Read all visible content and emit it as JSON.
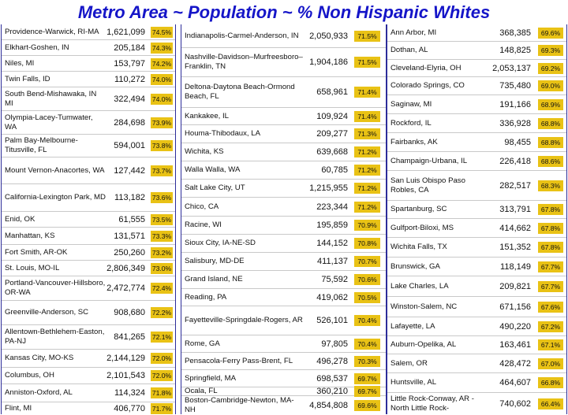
{
  "title": "Metro Area ~ Population ~ % Non Hispanic Whites",
  "highlight_color": "#e9c215",
  "title_color": "#1515c8",
  "columns": [
    [
      {
        "name": "Providence-Warwick, RI-MA",
        "pop": "1,621,099",
        "pct": "74.5%"
      },
      {
        "name": "Elkhart-Goshen, IN",
        "pop": "205,184",
        "pct": "74.3%"
      },
      {
        "name": "Niles, MI",
        "pop": "153,797",
        "pct": "74.2%"
      },
      {
        "name": "Twin Falls, ID",
        "pop": "110,272",
        "pct": "74.0%"
      },
      {
        "name": "South Bend-Mishawaka, IN MI",
        "pop": "322,494",
        "pct": "74.0%"
      },
      {
        "name": "Olympia-Lacey-Tumwater, WA",
        "pop": "284,698",
        "pct": "73.9%"
      },
      {
        "name": "Palm Bay-Melbourne-Titusville, FL",
        "pop": "594,001",
        "pct": "73.8%"
      },
      {
        "name": "Mount Vernon-Anacortes, WA",
        "pop": "127,442",
        "pct": "73.7%"
      },
      {
        "name": "California-Lexington Park, MD",
        "pop": "113,182",
        "pct": "73.6%"
      },
      {
        "name": "Enid, OK",
        "pop": "61,555",
        "pct": "73.5%"
      },
      {
        "name": "Manhattan, KS",
        "pop": "131,571",
        "pct": "73.3%"
      },
      {
        "name": "Fort Smith, AR-OK",
        "pop": "250,260",
        "pct": "73.2%"
      },
      {
        "name": "St. Louis, MO-IL",
        "pop": "2,806,349",
        "pct": "73.0%"
      },
      {
        "name": "Portland-Vancouver-Hillsboro, OR-WA",
        "pop": "2,472,774",
        "pct": "72.4%"
      },
      {
        "name": "Greenville-Anderson, SC",
        "pop": "908,680",
        "pct": "72.2%"
      },
      {
        "name": "Allentown-Bethlehem-Easton, PA-NJ",
        "pop": "841,265",
        "pct": "72.1%"
      },
      {
        "name": "Kansas City, MO-KS",
        "pop": "2,144,129",
        "pct": "72.0%"
      },
      {
        "name": "Columbus, OH",
        "pop": "2,101,543",
        "pct": "72.0%"
      },
      {
        "name": "Anniston-Oxford, AL",
        "pop": "114,324",
        "pct": "71.8%"
      },
      {
        "name": "Flint, MI",
        "pop": "406,770",
        "pct": "71.7%"
      }
    ],
    [
      {
        "name": "Indianapolis-Carmel-Anderson, IN",
        "pop": "2,050,933",
        "pct": "71.5%"
      },
      {
        "name": "Nashville-Davidson–Murfreesboro–Franklin, TN",
        "pop": "1,904,186",
        "pct": "71.5%"
      },
      {
        "name": "Deltona-Daytona Beach-Ormond Beach, FL",
        "pop": "658,961",
        "pct": "71.4%"
      },
      {
        "name": "Kankakee, IL",
        "pop": "109,924",
        "pct": "71.4%"
      },
      {
        "name": "Houma-Thibodaux, LA",
        "pop": "209,277",
        "pct": "71.3%"
      },
      {
        "name": "Wichita, KS",
        "pop": "639,668",
        "pct": "71.2%"
      },
      {
        "name": "Walla Walla, WA",
        "pop": "60,785",
        "pct": "71.2%"
      },
      {
        "name": "Salt Lake City, UT",
        "pop": "1,215,955",
        "pct": "71.2%"
      },
      {
        "name": "Chico, CA",
        "pop": "223,344",
        "pct": "71.2%"
      },
      {
        "name": "Racine, WI",
        "pop": "195,859",
        "pct": "70.9%"
      },
      {
        "name": "Sioux City, IA-NE-SD",
        "pop": "144,152",
        "pct": "70.8%"
      },
      {
        "name": "Salisbury, MD-DE",
        "pop": "411,137",
        "pct": "70.7%"
      },
      {
        "name": "Grand Island, NE",
        "pop": "75,592",
        "pct": "70.6%"
      },
      {
        "name": "Reading, PA",
        "pop": "419,062",
        "pct": "70.5%"
      },
      {
        "name": "Fayetteville-Springdale-Rogers, AR",
        "pop": "526,101",
        "pct": "70.4%"
      },
      {
        "name": "Rome, GA",
        "pop": "97,805",
        "pct": "70.4%"
      },
      {
        "name": "Pensacola-Ferry Pass-Brent, FL",
        "pop": "496,278",
        "pct": "70.3%"
      },
      {
        "name": "Springfield, MA",
        "pop": "698,537",
        "pct": "69.7%"
      },
      {
        "name": "Ocala, FL",
        "pop": "360,210",
        "pct": "69.7%"
      },
      {
        "name": "Boston-Cambridge-Newton, MA-NH",
        "pop": "4,854,808",
        "pct": "69.6%"
      }
    ],
    [
      {
        "name": "Ann Arbor, MI",
        "pop": "368,385",
        "pct": "69.6%"
      },
      {
        "name": "Dothan, AL",
        "pop": "148,825",
        "pct": "69.3%"
      },
      {
        "name": "Cleveland-Elyria, OH",
        "pop": "2,053,137",
        "pct": "69.2%"
      },
      {
        "name": "Colorado Springs, CO",
        "pop": "735,480",
        "pct": "69.0%"
      },
      {
        "name": "Saginaw, MI",
        "pop": "191,166",
        "pct": "68.9%"
      },
      {
        "name": "Rockford, IL",
        "pop": "336,928",
        "pct": "68.8%"
      },
      {
        "name": "Fairbanks, AK",
        "pop": "98,455",
        "pct": "68.8%"
      },
      {
        "name": "Champaign-Urbana, IL",
        "pop": "226,418",
        "pct": "68.6%"
      },
      {
        "name": "San Luis Obispo Paso Robles, CA",
        "pop": "282,517",
        "pct": "68.3%"
      },
      {
        "name": "Spartanburg, SC",
        "pop": "313,791",
        "pct": "67.8%"
      },
      {
        "name": "Gulfport-Biloxi, MS",
        "pop": "414,662",
        "pct": "67.8%"
      },
      {
        "name": "Wichita Falls, TX",
        "pop": "151,352",
        "pct": "67.8%"
      },
      {
        "name": "Brunswick, GA",
        "pop": "118,149",
        "pct": "67.7%"
      },
      {
        "name": "Lake Charles, LA",
        "pop": "209,821",
        "pct": "67.7%"
      },
      {
        "name": "Winston-Salem, NC",
        "pop": "671,156",
        "pct": "67.6%"
      },
      {
        "name": "Lafayette, LA",
        "pop": "490,220",
        "pct": "67.2%"
      },
      {
        "name": "Auburn-Opelika, AL",
        "pop": "163,461",
        "pct": "67.1%"
      },
      {
        "name": "Salem, OR",
        "pop": "428,472",
        "pct": "67.0%"
      },
      {
        "name": "Huntsville, AL",
        "pop": "464,607",
        "pct": "66.8%"
      },
      {
        "name": "Little Rock-Conway, AR -North Little Rock-",
        "pop": "740,602",
        "pct": "66.4%"
      }
    ]
  ]
}
